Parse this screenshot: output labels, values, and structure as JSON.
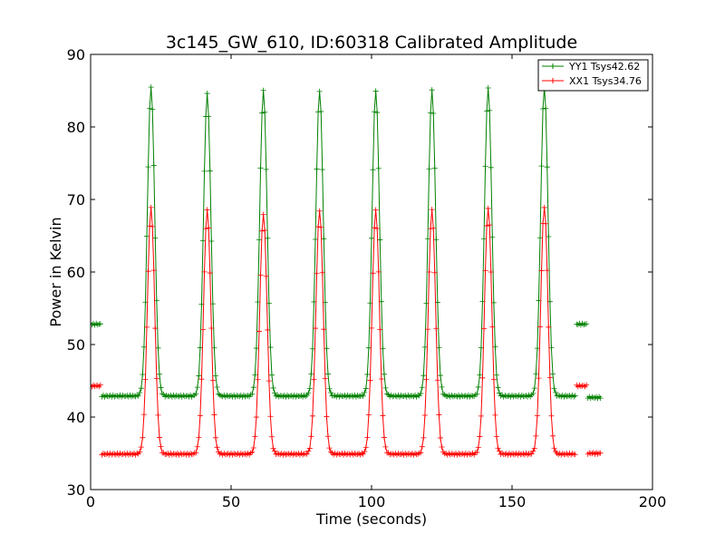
{
  "chart_data": {
    "type": "line",
    "title": "3c145_GW_610, ID:60318 Calibrated Amplitude",
    "xlabel": "Time (seconds)",
    "ylabel": "Power in Kelvin",
    "xlim": [
      0,
      200
    ],
    "ylim": [
      30,
      90
    ],
    "xticks": [
      0,
      50,
      100,
      150,
      200
    ],
    "yticks": [
      30,
      40,
      50,
      60,
      70,
      80,
      90
    ],
    "grid": false,
    "legend_position": "top-right",
    "marker": "plus",
    "segments": [
      [
        0,
        4
      ],
      [
        4,
        173
      ],
      [
        173,
        177
      ],
      [
        177,
        182
      ]
    ],
    "series": [
      {
        "name": "YY1 Tsys42.62",
        "color": "#008000",
        "on_level": 52.8,
        "baseline": 42.9,
        "end_level": 42.7,
        "peak_times": [
          21.5,
          41.5,
          61.5,
          81.5,
          101.5,
          121.5,
          141.5,
          161.5
        ],
        "peak_values": [
          85.5,
          84.5,
          85.0,
          85.0,
          85.0,
          85.0,
          85.3,
          85.5
        ],
        "peak_width": 1.3
      },
      {
        "name": "XX1 Tsys34.76",
        "color": "#ff0000",
        "on_level": 44.3,
        "baseline": 34.9,
        "end_level": 35.0,
        "peak_times": [
          21.5,
          41.5,
          61.5,
          81.5,
          101.5,
          121.5,
          141.5,
          161.5
        ],
        "peak_values": [
          68.8,
          68.5,
          68.0,
          68.5,
          68.5,
          68.5,
          68.8,
          69.0
        ],
        "peak_width": 1.3
      }
    ]
  }
}
